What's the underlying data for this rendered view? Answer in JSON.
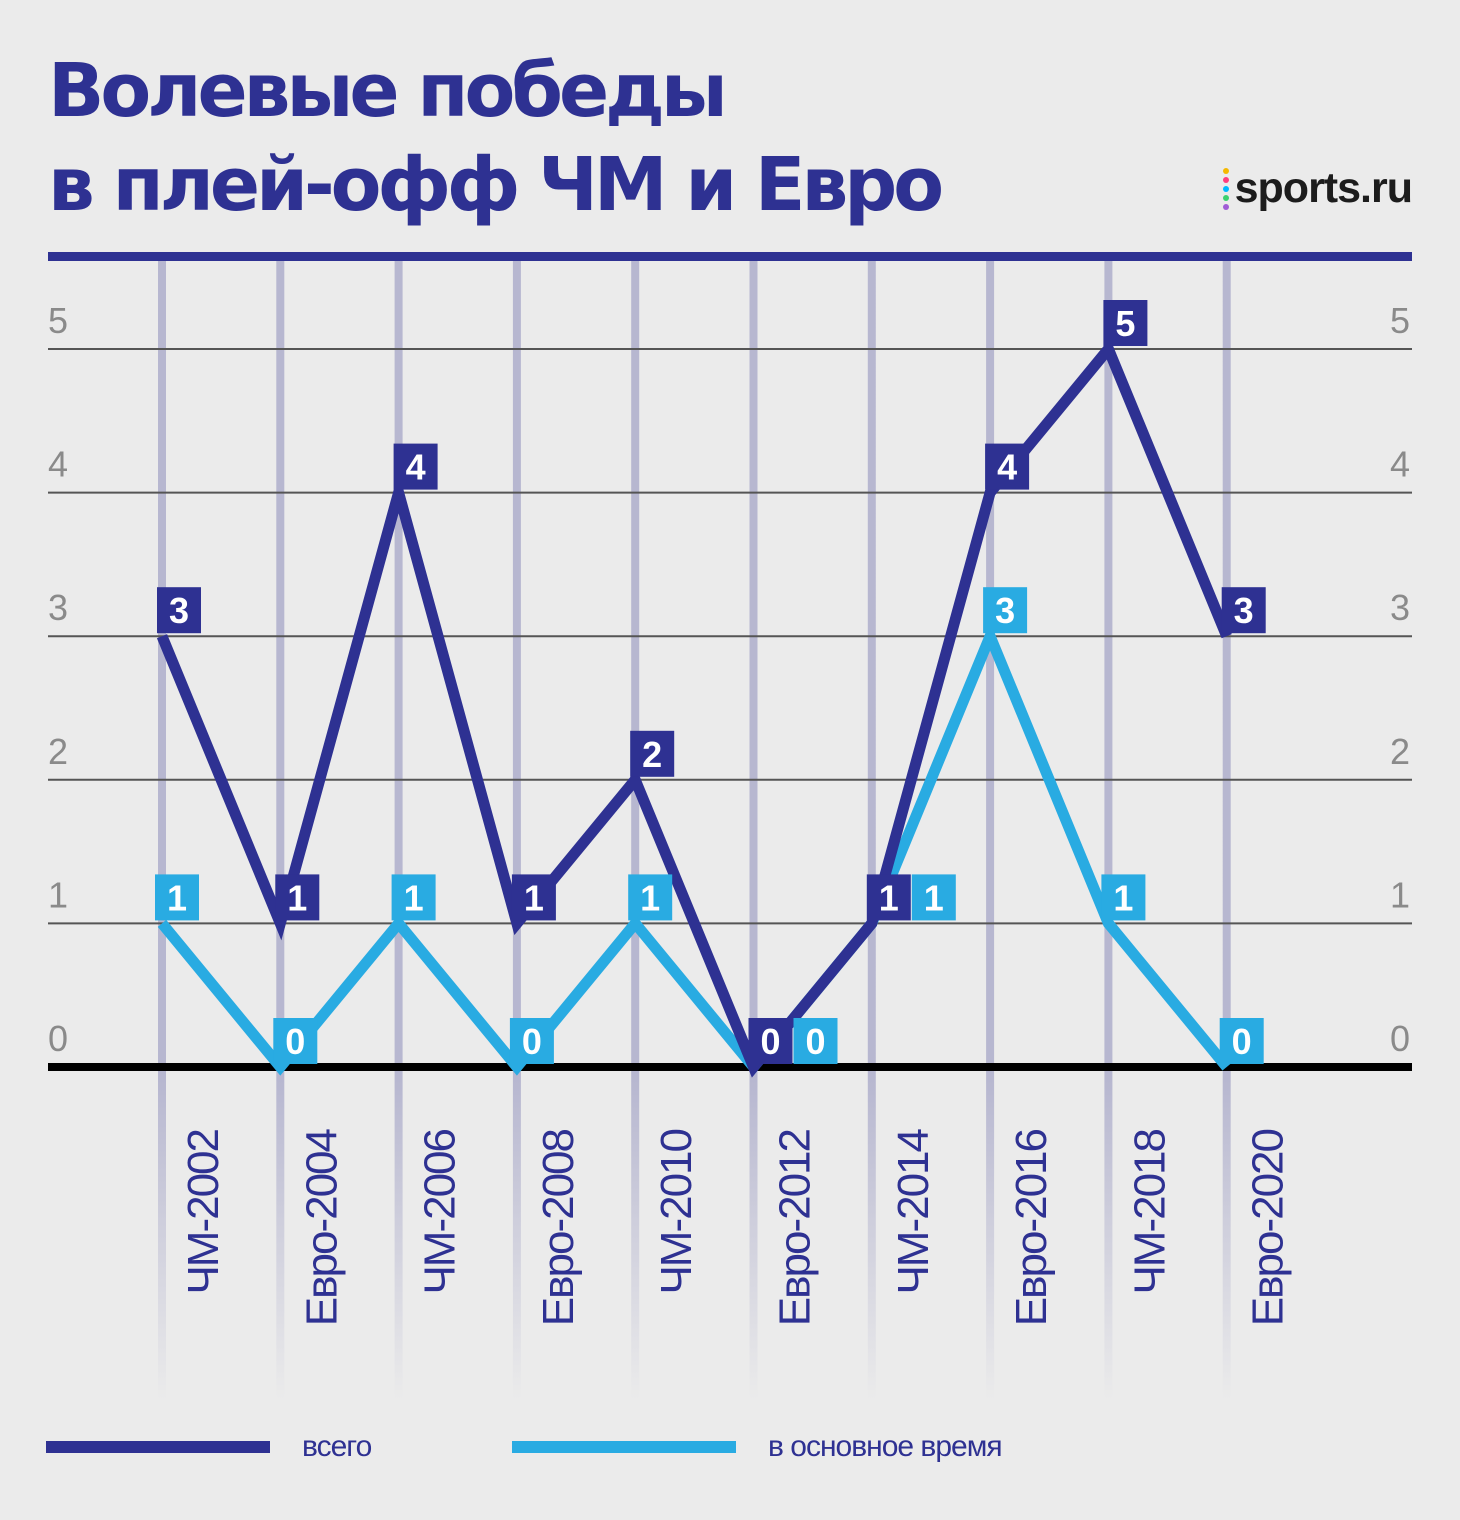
{
  "title": "Волевые победы\nв плей-офф ЧМ и Евро",
  "brand": {
    "name": "sports.ru",
    "dot_colors": [
      "#f5b800",
      "#ff3d7f",
      "#00b9ff",
      "#3bd16f",
      "#a05cd6"
    ]
  },
  "colors": {
    "total": "#2e3192",
    "regular": "#29abe2",
    "grid": "#555555",
    "baseline": "#000000",
    "top_bar": "#2e3192",
    "column": "#b7b7d0"
  },
  "chart_data": {
    "type": "line",
    "title": "Волевые победы в плей-офф ЧМ и Евро",
    "categories": [
      "ЧМ-2002",
      "Евро-2004",
      "ЧМ-2006",
      "Евро-2008",
      "ЧМ-2010",
      "Евро-2012",
      "ЧМ-2014",
      "Евро-2016",
      "ЧМ-2018",
      "Евро-2020"
    ],
    "series": [
      {
        "name": "всего",
        "values": [
          3,
          1,
          4,
          1,
          2,
          0,
          1,
          4,
          5,
          3
        ]
      },
      {
        "name": "в основное время",
        "values": [
          1,
          0,
          1,
          0,
          1,
          0,
          1,
          3,
          1,
          0
        ]
      }
    ],
    "yticks": [
      0,
      1,
      2,
      3,
      4,
      5
    ],
    "ylim": [
      0,
      5
    ],
    "grid": true,
    "legend_position": "bottom"
  },
  "legend": {
    "total_label": "всего",
    "regular_label": "в основное время"
  }
}
